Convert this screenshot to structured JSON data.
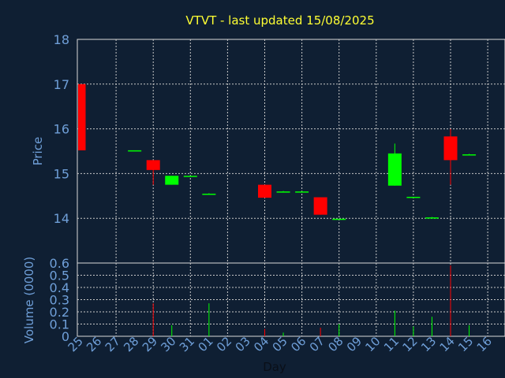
{
  "chart_data": [
    {
      "type": "candlestick",
      "title": "VTVT - last updated 15/08/2025",
      "ylabel": "Price",
      "ylim": [
        13,
        18
      ],
      "yticks": [
        14,
        15,
        16,
        17,
        18
      ],
      "grid": true,
      "up_color": "#00ff00",
      "down_color": "#ff0000",
      "categories": [
        "25",
        "26",
        "27",
        "28",
        "29",
        "30",
        "31",
        "01",
        "02",
        "03",
        "04",
        "05",
        "06",
        "07",
        "08",
        "09",
        "10",
        "11",
        "12",
        "13",
        "14",
        "15",
        "16"
      ],
      "candles": [
        {
          "day": "25",
          "open": 17.0,
          "high": 17.0,
          "low": 15.52,
          "close": 15.52
        },
        {
          "day": "28",
          "open": 15.52,
          "high": 15.52,
          "low": 15.52,
          "close": 15.52
        },
        {
          "day": "29",
          "open": 15.3,
          "high": 15.3,
          "low": 14.75,
          "close": 15.08
        },
        {
          "day": "30",
          "open": 14.75,
          "high": 14.95,
          "low": 14.75,
          "close": 14.95
        },
        {
          "day": "31",
          "open": 14.93,
          "high": 14.95,
          "low": 14.93,
          "close": 14.95
        },
        {
          "day": "01",
          "open": 14.55,
          "high": 14.56,
          "low": 14.54,
          "close": 14.55
        },
        {
          "day": "04",
          "open": 14.75,
          "high": 14.75,
          "low": 14.46,
          "close": 14.46
        },
        {
          "day": "05",
          "open": 14.59,
          "high": 14.61,
          "low": 14.59,
          "close": 14.6
        },
        {
          "day": "06",
          "open": 14.6,
          "high": 14.61,
          "low": 14.6,
          "close": 14.6
        },
        {
          "day": "07",
          "open": 14.47,
          "high": 14.47,
          "low": 14.08,
          "close": 14.08
        },
        {
          "day": "08",
          "open": 13.98,
          "high": 13.99,
          "low": 13.98,
          "close": 13.99
        },
        {
          "day": "11",
          "open": 14.73,
          "high": 15.67,
          "low": 14.73,
          "close": 15.45
        },
        {
          "day": "12",
          "open": 14.47,
          "high": 14.48,
          "low": 14.47,
          "close": 14.48
        },
        {
          "day": "13",
          "open": 14.01,
          "high": 14.03,
          "low": 14.01,
          "close": 14.02
        },
        {
          "day": "14",
          "open": 15.83,
          "high": 16.0,
          "low": 14.75,
          "close": 15.3
        },
        {
          "day": "15",
          "open": 15.42,
          "high": 15.44,
          "low": 15.42,
          "close": 15.43
        }
      ]
    },
    {
      "type": "bar",
      "ylabel": "Volume (0000)",
      "xlabel": "Day",
      "ylim": [
        0,
        0.6
      ],
      "yticks": [
        "0",
        "0.1",
        "0.2",
        "0.3",
        "0.4",
        "0.5",
        "0.6"
      ],
      "grid": true,
      "categories": [
        "25",
        "26",
        "27",
        "28",
        "29",
        "30",
        "31",
        "01",
        "02",
        "03",
        "04",
        "05",
        "06",
        "07",
        "08",
        "09",
        "10",
        "11",
        "12",
        "13",
        "14",
        "15",
        "16"
      ],
      "bars": [
        {
          "day": "29",
          "value": 0.27,
          "color": "#ff0000"
        },
        {
          "day": "30",
          "value": 0.09,
          "color": "#00ff00"
        },
        {
          "day": "01",
          "value": 0.27,
          "color": "#00ff00"
        },
        {
          "day": "04",
          "value": 0.06,
          "color": "#ff0000"
        },
        {
          "day": "05",
          "value": 0.03,
          "color": "#00ff00"
        },
        {
          "day": "07",
          "value": 0.07,
          "color": "#ff0000"
        },
        {
          "day": "08",
          "value": 0.1,
          "color": "#00ff00"
        },
        {
          "day": "11",
          "value": 0.21,
          "color": "#00ff00"
        },
        {
          "day": "12",
          "value": 0.08,
          "color": "#00ff00"
        },
        {
          "day": "13",
          "value": 0.16,
          "color": "#00ff00"
        },
        {
          "day": "14",
          "value": 0.58,
          "color": "#ff0000"
        },
        {
          "day": "15",
          "value": 0.09,
          "color": "#00ff00"
        }
      ]
    }
  ]
}
